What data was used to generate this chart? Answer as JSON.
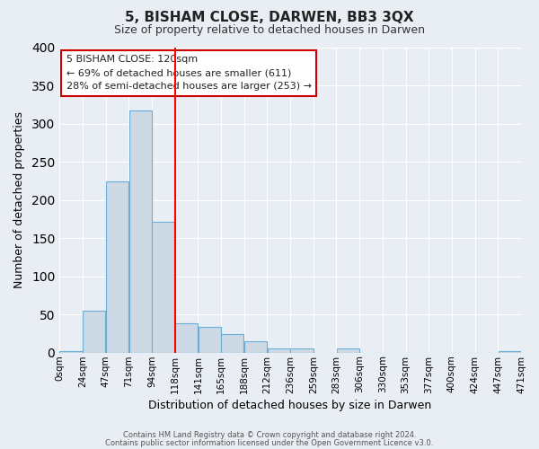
{
  "title": "5, BISHAM CLOSE, DARWEN, BB3 3QX",
  "subtitle": "Size of property relative to detached houses in Darwen",
  "xlabel": "Distribution of detached houses by size in Darwen",
  "ylabel": "Number of detached properties",
  "bin_labels": [
    "0sqm",
    "24sqm",
    "47sqm",
    "71sqm",
    "94sqm",
    "118sqm",
    "141sqm",
    "165sqm",
    "188sqm",
    "212sqm",
    "236sqm",
    "259sqm",
    "283sqm",
    "306sqm",
    "330sqm",
    "353sqm",
    "377sqm",
    "400sqm",
    "424sqm",
    "447sqm",
    "471sqm"
  ],
  "bar_heights": [
    2,
    55,
    225,
    318,
    172,
    38,
    34,
    24,
    15,
    5,
    6,
    0,
    5,
    0,
    0,
    0,
    0,
    0,
    0,
    2
  ],
  "bar_color": "#cdd9e5",
  "bar_edge_color": "#6aaed6",
  "vline_bin": 5,
  "vline_color": "red",
  "ylim": [
    0,
    400
  ],
  "yticks": [
    0,
    50,
    100,
    150,
    200,
    250,
    300,
    350,
    400
  ],
  "annotation_title": "5 BISHAM CLOSE: 120sqm",
  "annotation_line1": "← 69% of detached houses are smaller (611)",
  "annotation_line2": "28% of semi-detached houses are larger (253) →",
  "annotation_border_color": "#cc0000",
  "footer1": "Contains HM Land Registry data © Crown copyright and database right 2024.",
  "footer2": "Contains public sector information licensed under the Open Government Licence v3.0.",
  "bg_color": "#e8eef4",
  "plot_bg_color": "#e8eef4",
  "grid_color": "#ffffff"
}
